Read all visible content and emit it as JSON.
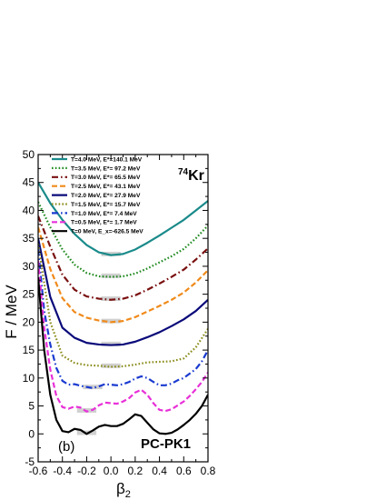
{
  "chart_data": {
    "type": "line",
    "ylabel": "F / MeV",
    "xlabel_base": "β",
    "xlabel_sub": "2",
    "nucleus_mass": "74",
    "nucleus_symbol": "Kr",
    "panel_label": "(b)",
    "model_label": "PC-PK1",
    "xlim": [
      -0.6,
      0.8
    ],
    "ylim": [
      -5,
      50
    ],
    "xticks": [
      "-0.6",
      "-0.4",
      "-0.2",
      "0.0",
      "0.2",
      "0.4",
      "0.6",
      "0.8"
    ],
    "yticks": [
      "-5",
      "0",
      "5",
      "10",
      "15",
      "20",
      "25",
      "30",
      "35",
      "40",
      "45",
      "50"
    ],
    "grid": false,
    "legend_position": "top-right",
    "series": [
      {
        "name": "T=4.0 MeV, E*=140.1 MeV",
        "color": "#1a8a8a",
        "dash": "solid",
        "x": [
          -0.6,
          -0.5,
          -0.4,
          -0.3,
          -0.2,
          -0.1,
          0.0,
          0.1,
          0.2,
          0.3,
          0.4,
          0.5,
          0.6,
          0.7,
          0.8
        ],
        "y": [
          45.0,
          41.3,
          38.3,
          35.8,
          33.8,
          32.5,
          32.0,
          32.2,
          33.0,
          34.2,
          35.5,
          36.9,
          38.3,
          40.0,
          41.7
        ]
      },
      {
        "name": "T=3.5 MeV, E*= 97.2 MeV",
        "color": "#1f8a1f",
        "dash": "dotted",
        "x": [
          -0.6,
          -0.5,
          -0.4,
          -0.3,
          -0.2,
          -0.1,
          0.0,
          0.1,
          0.2,
          0.3,
          0.4,
          0.5,
          0.6,
          0.7,
          0.8
        ],
        "y": [
          41.5,
          37.0,
          33.0,
          30.3,
          28.8,
          28.2,
          28.1,
          28.2,
          28.7,
          29.6,
          30.7,
          31.8,
          33.1,
          35.0,
          37.3
        ]
      },
      {
        "name": "T=3.0 MeV, E*= 65.5 MeV",
        "color": "#7a1010",
        "dash": "dashdot",
        "x": [
          -0.6,
          -0.5,
          -0.4,
          -0.3,
          -0.2,
          -0.1,
          0.0,
          0.1,
          0.2,
          0.3,
          0.4,
          0.5,
          0.6,
          0.7,
          0.8
        ],
        "y": [
          39.0,
          33.5,
          28.5,
          25.8,
          24.6,
          24.2,
          24.0,
          24.2,
          24.8,
          25.8,
          26.9,
          28.1,
          29.4,
          31.2,
          33.2
        ]
      },
      {
        "name": "T=2.5 MeV, E*= 43.1 MeV",
        "color": "#f08a1a",
        "dash": "dashed",
        "x": [
          -0.6,
          -0.5,
          -0.4,
          -0.3,
          -0.2,
          -0.1,
          0.0,
          0.1,
          0.2,
          0.3,
          0.4,
          0.5,
          0.6,
          0.7,
          0.8
        ],
        "y": [
          37.0,
          29.5,
          24.3,
          21.8,
          20.8,
          20.3,
          20.0,
          20.2,
          20.9,
          21.9,
          22.9,
          24.0,
          25.3,
          27.1,
          29.3
        ]
      },
      {
        "name": "T=2.0 MeV, E*= 27.9 MeV",
        "color": "#0a0a7a",
        "dash": "solid",
        "x": [
          -0.6,
          -0.5,
          -0.4,
          -0.3,
          -0.2,
          -0.1,
          0.0,
          0.1,
          0.2,
          0.3,
          0.4,
          0.5,
          0.6,
          0.7,
          0.8
        ],
        "y": [
          35.0,
          24.5,
          19.0,
          17.2,
          16.3,
          16.0,
          15.9,
          16.0,
          16.5,
          17.3,
          18.2,
          19.3,
          20.5,
          22.0,
          24.0
        ]
      },
      {
        "name": "T=1.5 MeV, E*= 15.7 MeV",
        "color": "#8a8a1a",
        "dash": "dotted",
        "x": [
          -0.6,
          -0.5,
          -0.4,
          -0.3,
          -0.2,
          -0.1,
          0.0,
          0.1,
          0.2,
          0.3,
          0.4,
          0.5,
          0.6,
          0.7,
          0.8
        ],
        "y": [
          34.0,
          20.0,
          14.0,
          12.7,
          12.3,
          12.2,
          12.0,
          12.1,
          12.4,
          12.8,
          12.9,
          13.0,
          13.5,
          15.5,
          18.8
        ]
      },
      {
        "name": "T=1.0 MeV, E*=  7.4 MeV",
        "color": "#1a3ad0",
        "dash": "dashdot",
        "x": [
          -0.6,
          -0.55,
          -0.5,
          -0.45,
          -0.4,
          -0.35,
          -0.3,
          -0.25,
          -0.2,
          -0.15,
          -0.1,
          -0.05,
          0.0,
          0.05,
          0.1,
          0.15,
          0.2,
          0.25,
          0.3,
          0.35,
          0.4,
          0.45,
          0.5,
          0.55,
          0.6,
          0.65,
          0.7,
          0.75,
          0.8
        ],
        "y": [
          33.0,
          22.0,
          16.0,
          11.8,
          9.5,
          8.8,
          8.9,
          8.6,
          8.4,
          8.2,
          8.5,
          8.9,
          8.8,
          8.7,
          8.9,
          9.3,
          9.9,
          10.3,
          10.0,
          9.3,
          8.7,
          8.7,
          9.0,
          9.6,
          10.0,
          10.8,
          11.6,
          13.0,
          15.0
        ]
      },
      {
        "name": "T=0.5 MeV, E*=  1.7 MeV",
        "color": "#e830d8",
        "dash": "dashed",
        "x": [
          -0.6,
          -0.55,
          -0.5,
          -0.45,
          -0.4,
          -0.35,
          -0.3,
          -0.25,
          -0.2,
          -0.15,
          -0.1,
          -0.05,
          0.0,
          0.05,
          0.1,
          0.15,
          0.2,
          0.25,
          0.3,
          0.35,
          0.4,
          0.45,
          0.5,
          0.55,
          0.6,
          0.65,
          0.7,
          0.75,
          0.8
        ],
        "y": [
          31.0,
          19.0,
          11.5,
          6.8,
          4.8,
          4.5,
          4.9,
          4.7,
          4.0,
          4.3,
          5.1,
          5.6,
          5.5,
          5.4,
          5.8,
          6.4,
          7.4,
          7.9,
          7.0,
          5.5,
          4.3,
          4.1,
          4.4,
          5.1,
          5.8,
          6.8,
          8.0,
          9.3,
          11.0
        ]
      },
      {
        "name": "T=0 MeV, E_x=-626.5 MeV",
        "color": "#000000",
        "dash": "solid",
        "x": [
          -0.6,
          -0.55,
          -0.5,
          -0.45,
          -0.4,
          -0.35,
          -0.3,
          -0.25,
          -0.2,
          -0.15,
          -0.1,
          -0.05,
          0.0,
          0.05,
          0.1,
          0.15,
          0.2,
          0.25,
          0.3,
          0.35,
          0.4,
          0.45,
          0.5,
          0.55,
          0.6,
          0.65,
          0.7,
          0.75,
          0.8
        ],
        "y": [
          28.0,
          15.0,
          7.0,
          2.5,
          0.5,
          0.3,
          0.9,
          0.7,
          0.0,
          0.6,
          1.3,
          1.6,
          1.4,
          1.4,
          1.8,
          2.6,
          3.5,
          3.2,
          2.0,
          0.8,
          0.1,
          0.0,
          0.2,
          0.8,
          1.6,
          2.5,
          3.6,
          5.0,
          7.0
        ]
      }
    ]
  }
}
